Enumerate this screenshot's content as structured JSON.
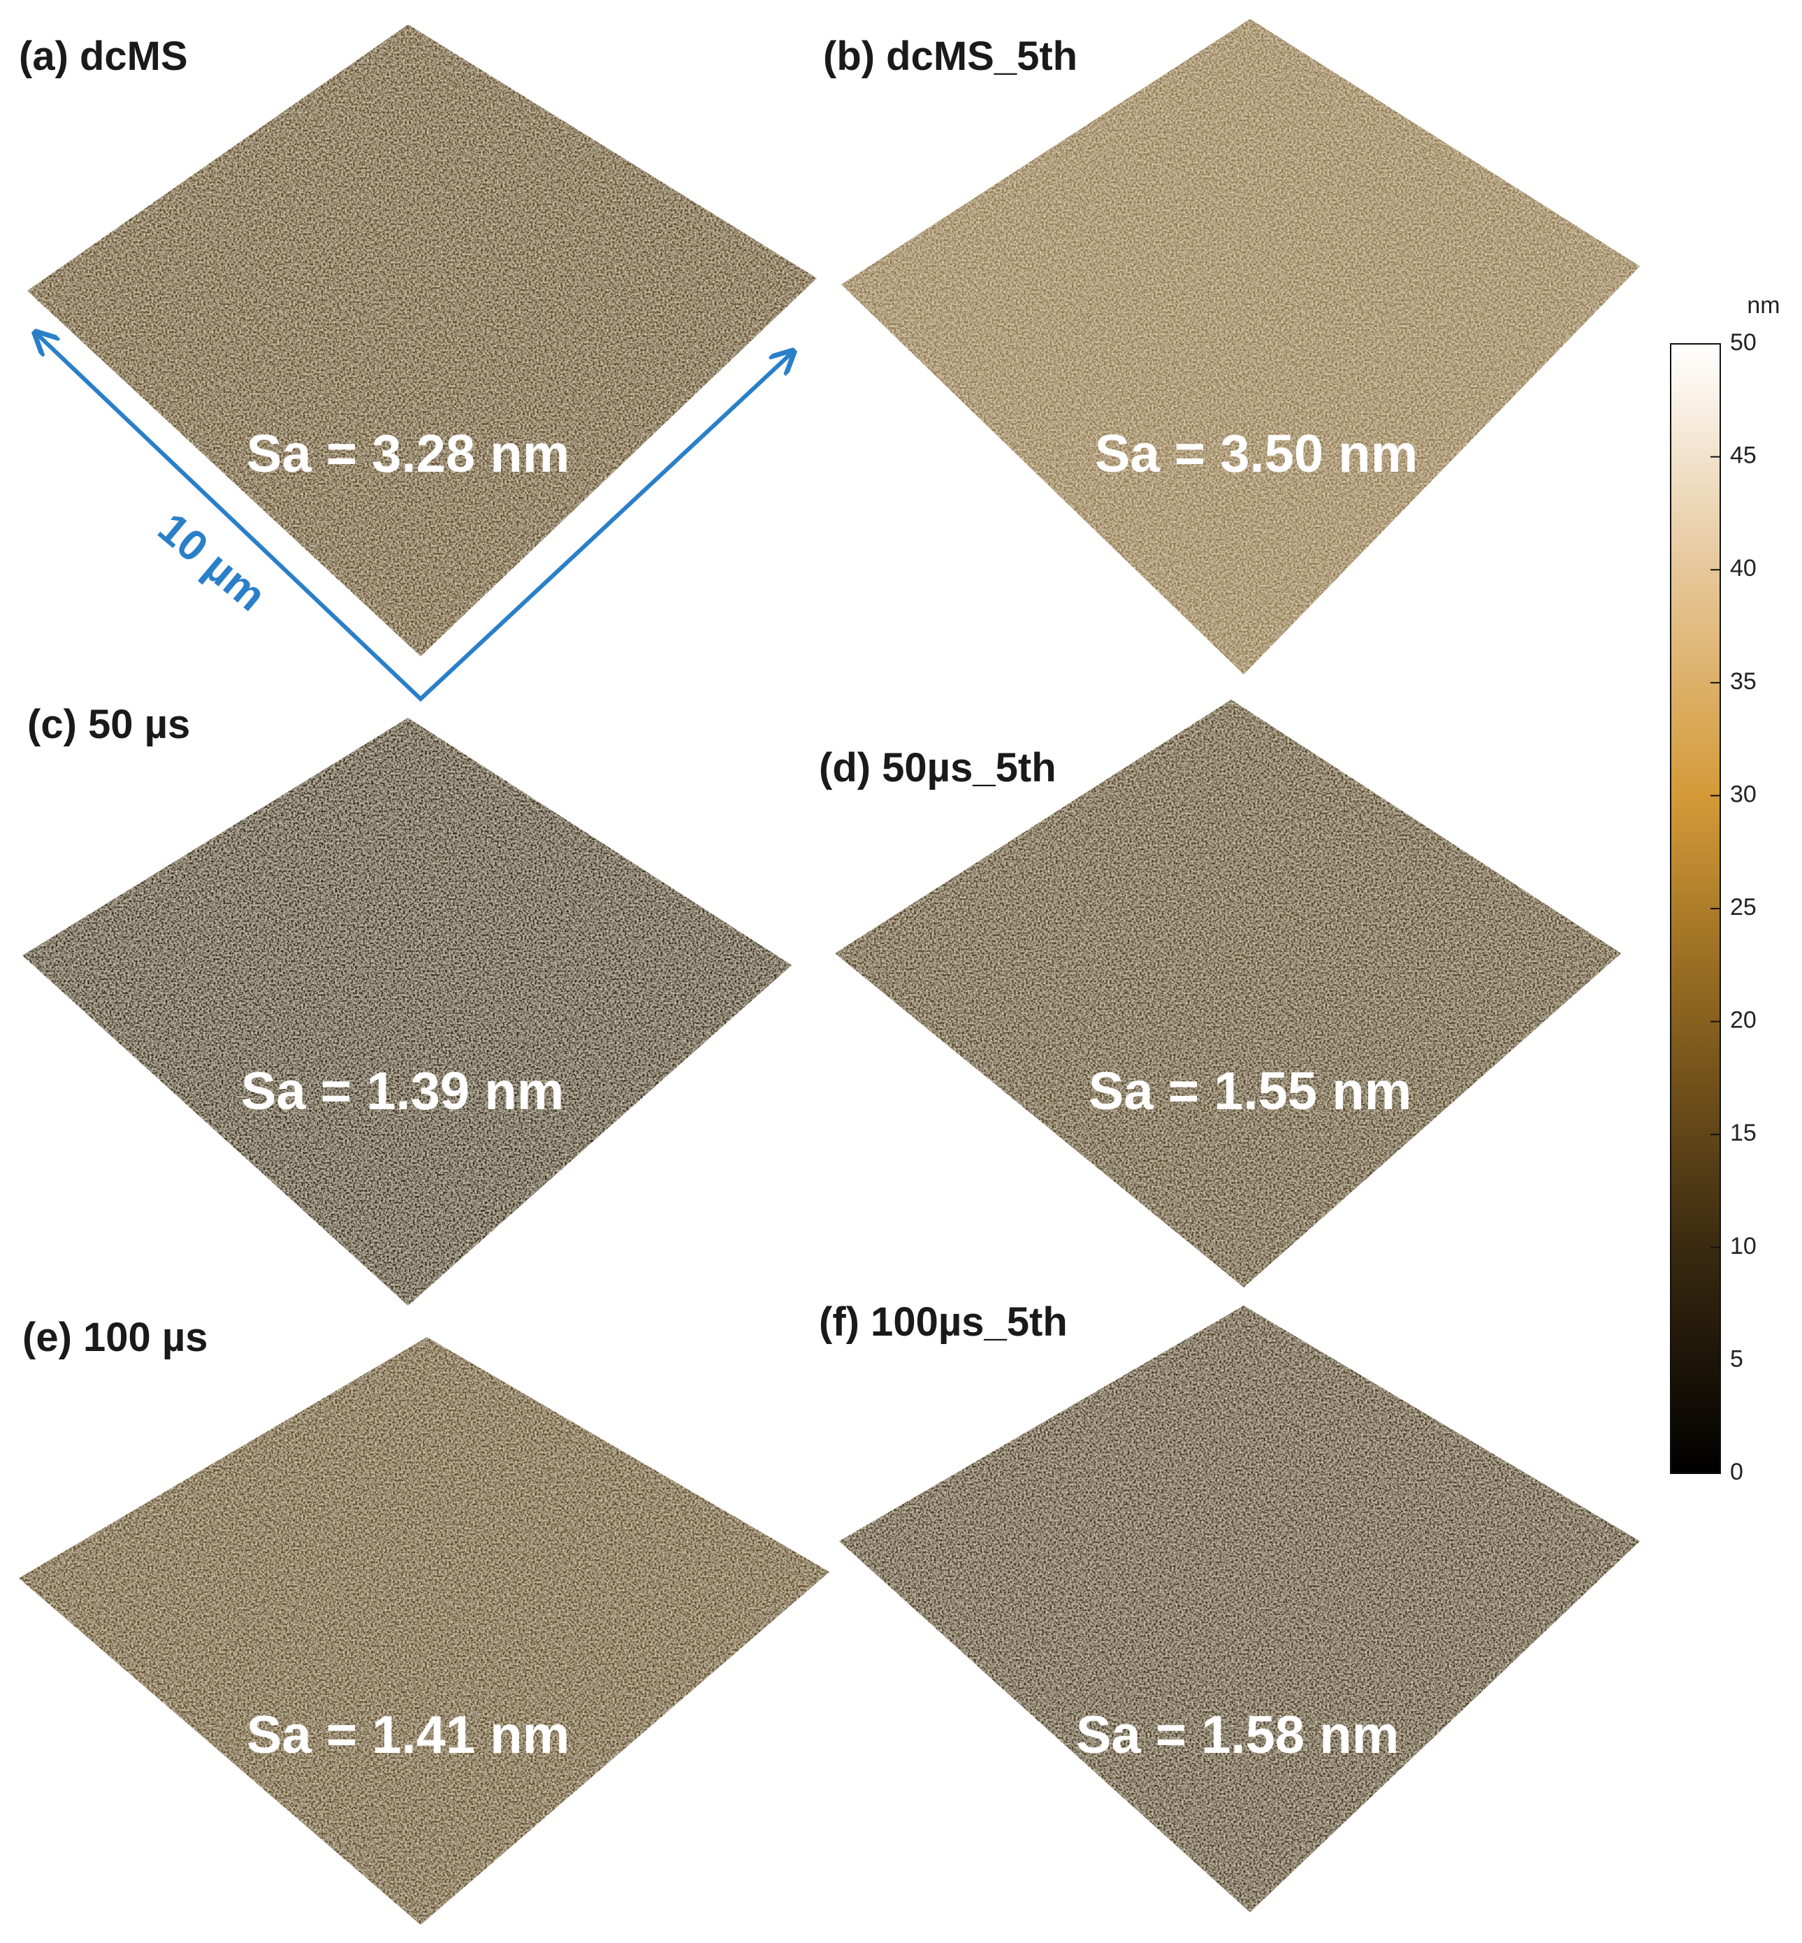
{
  "panels": [
    {
      "label": "(a) dcMS",
      "roughness": "Sa = 3.28 nm"
    },
    {
      "label": "(b) dcMS_5th",
      "roughness": "Sa = 3.50 nm"
    },
    {
      "label": "(c) 50 µs",
      "roughness": "Sa = 1.39 nm"
    },
    {
      "label": "(d) 50µs_5th",
      "roughness": "Sa = 1.55 nm"
    },
    {
      "label": "(e) 100 µs",
      "roughness": "Sa = 1.41 nm"
    },
    {
      "label": "(f) 100µs_5th",
      "roughness": "Sa = 1.58 nm"
    }
  ],
  "scale_bar": {
    "label": "10 µm"
  },
  "colorbar": {
    "unit": "nm",
    "ticks": [
      0,
      5,
      10,
      15,
      20,
      25,
      30,
      35,
      40,
      45,
      50
    ]
  }
}
